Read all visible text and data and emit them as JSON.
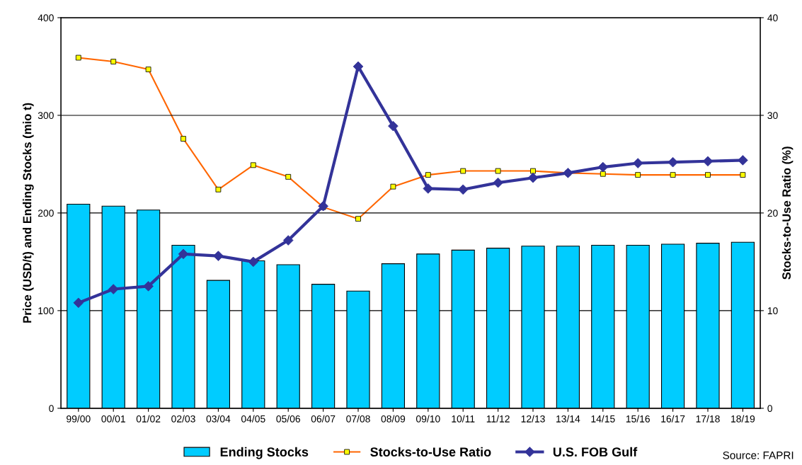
{
  "chart_data": {
    "type": "bar",
    "ylabel": "Price (USD/t) and Ending Stocks (mio t)",
    "y2label": "Stocks-to-Use Ratio (%)",
    "categories": [
      "99/00",
      "00/01",
      "01/02",
      "02/03",
      "03/04",
      "04/05",
      "05/06",
      "06/07",
      "07/08",
      "08/09",
      "09/10",
      "10/11",
      "11/12",
      "12/13",
      "13/14",
      "14/15",
      "15/16",
      "16/17",
      "17/18",
      "18/19"
    ],
    "series": [
      {
        "name": "Ending Stocks",
        "color": "#00ccff",
        "values": [
          209,
          207,
          203,
          167,
          131,
          151,
          147,
          127,
          120,
          148,
          158,
          162,
          164,
          166,
          166,
          167,
          167,
          168,
          169,
          170
        ]
      },
      {
        "name": "Stocks-to-Use Ratio",
        "type": "line",
        "axis": "y2",
        "color": "#ff6600",
        "marker": "square",
        "values": [
          35.9,
          35.5,
          34.7,
          27.6,
          22.4,
          24.9,
          23.7,
          20.6,
          19.4,
          22.7,
          23.9,
          24.3,
          24.3,
          24.3,
          24.1,
          24.0,
          23.9,
          23.9,
          23.9,
          23.9
        ]
      },
      {
        "name": "U.S. FOB Gulf",
        "type": "line",
        "color": "#333399",
        "marker": "diamond",
        "values": [
          108,
          122,
          125,
          158,
          156,
          150,
          172,
          207,
          350,
          289,
          225,
          224,
          231,
          236,
          241,
          247,
          251,
          252,
          253,
          254
        ]
      }
    ],
    "ylim": [
      0,
      400
    ],
    "yticks": [
      0,
      100,
      200,
      300,
      400
    ],
    "y2lim": [
      0,
      40
    ],
    "y2ticks": [
      0,
      10,
      20,
      30,
      40
    ],
    "grid": "y",
    "legend": "bottom",
    "annotations": [
      "Source: FAPRI"
    ]
  }
}
